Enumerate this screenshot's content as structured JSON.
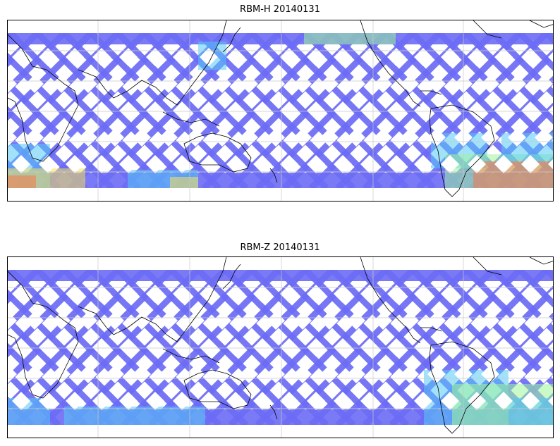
{
  "panels": [
    {
      "title": "RBM-H 20140131",
      "hotspot": "h"
    },
    {
      "title": "RBM-Z 20140131",
      "hotspot": "z"
    }
  ],
  "colors": {
    "swath_low": "#6b6bf5",
    "swath_mid": "#55c8f5",
    "swath_high": "#9ff59a",
    "swath_yellow": "#f5e25a",
    "swath_max": "#f57a4a",
    "coast": "#000000",
    "grid": "#c8c8c8"
  }
}
